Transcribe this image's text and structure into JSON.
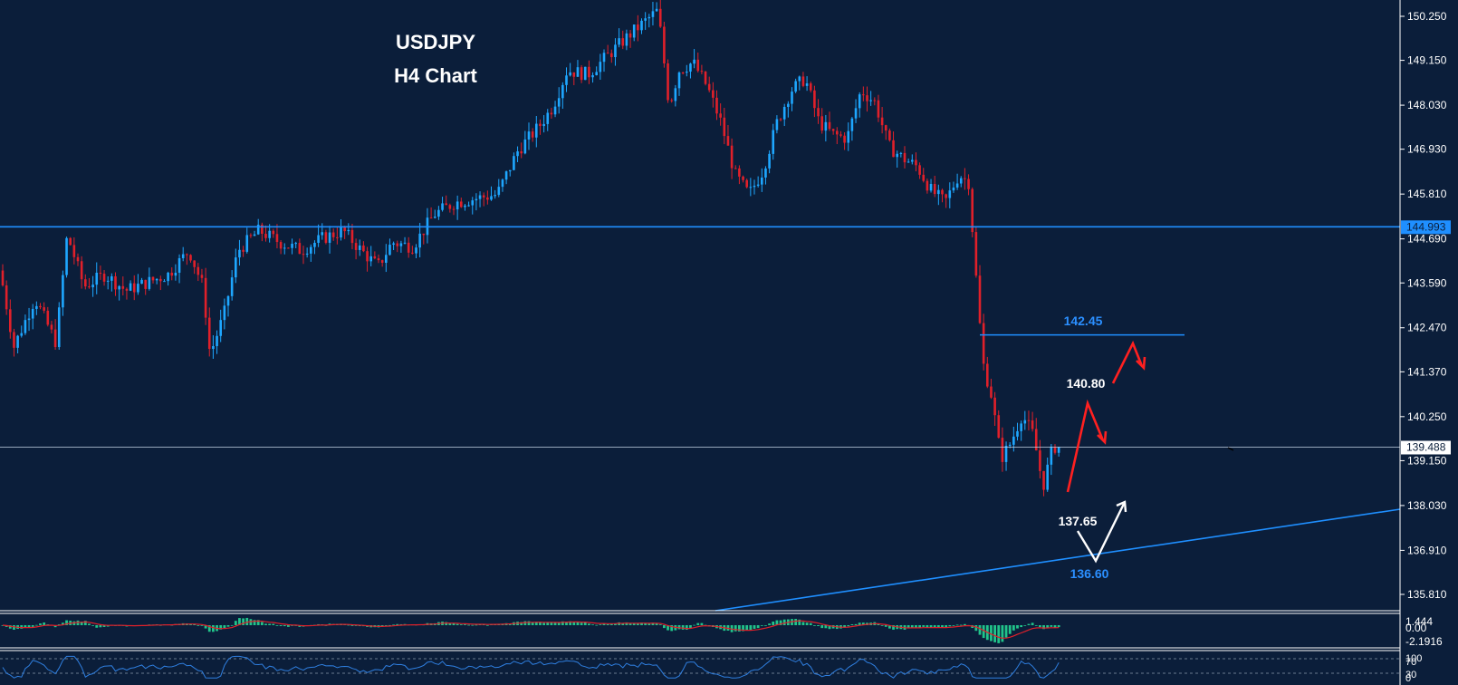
{
  "header": {
    "symbol": "USDJPY",
    "timeframe": "H4 Chart"
  },
  "colors": {
    "background": "#0b1e3a",
    "bull": "#1ea7ff",
    "bear": "#e0202a",
    "level_line": "#1f8fff",
    "current_price_line": "#c8d6e8",
    "projection_red": "#ff2020",
    "projection_white": "#ffffff",
    "macd_histogram": "#21c48a",
    "macd_signal": "#e0202a",
    "rsi_line": "#2f7fe0",
    "scale_text": "#ffffff"
  },
  "price_scale": {
    "labels": [
      "150.250",
      "149.150",
      "148.030",
      "146.930",
      "145.810",
      "144.690",
      "143.590",
      "142.470",
      "141.370",
      "140.250",
      "139.150",
      "138.030",
      "136.910",
      "135.810"
    ]
  },
  "price_tags": {
    "resistance": "144.993",
    "current": "139.488"
  },
  "annotations": {
    "level_142": "142.45",
    "level_140": "140.80",
    "level_137": "137.65",
    "level_136": "136.60"
  },
  "macd": {
    "labels": [
      "1.444",
      "0.00",
      "-2.1916"
    ]
  },
  "rsi": {
    "labels": [
      "100",
      "70",
      "30",
      "0"
    ]
  },
  "chart_data": {
    "type": "candlestick",
    "symbol": "USDJPY",
    "timeframe": "H4",
    "ylim": [
      135.3,
      150.5
    ],
    "horizontal_levels": [
      144.993,
      139.488,
      142.45
    ],
    "trendline": {
      "from": [
        0.493,
        135.25
      ],
      "to": [
        1.0,
        138.0
      ]
    },
    "close_path": [
      [
        0.0,
        143.9
      ],
      [
        0.01,
        142.0
      ],
      [
        0.025,
        143.2
      ],
      [
        0.04,
        142.1
      ],
      [
        0.048,
        144.8
      ],
      [
        0.06,
        143.5
      ],
      [
        0.075,
        143.8
      ],
      [
        0.09,
        143.4
      ],
      [
        0.105,
        143.6
      ],
      [
        0.12,
        143.8
      ],
      [
        0.135,
        144.4
      ],
      [
        0.145,
        143.5
      ],
      [
        0.15,
        141.8
      ],
      [
        0.16,
        142.8
      ],
      [
        0.17,
        144.4
      ],
      [
        0.185,
        144.9
      ],
      [
        0.2,
        144.6
      ],
      [
        0.215,
        144.4
      ],
      [
        0.23,
        144.7
      ],
      [
        0.245,
        144.9
      ],
      [
        0.258,
        144.4
      ],
      [
        0.27,
        144.0
      ],
      [
        0.28,
        144.6
      ],
      [
        0.295,
        144.5
      ],
      [
        0.31,
        145.3
      ],
      [
        0.325,
        145.6
      ],
      [
        0.34,
        145.7
      ],
      [
        0.355,
        145.8
      ],
      [
        0.37,
        146.9
      ],
      [
        0.385,
        147.5
      ],
      [
        0.395,
        148.0
      ],
      [
        0.405,
        148.9
      ],
      [
        0.42,
        148.8
      ],
      [
        0.435,
        149.3
      ],
      [
        0.45,
        149.8
      ],
      [
        0.46,
        150.1
      ],
      [
        0.47,
        150.4
      ],
      [
        0.478,
        148.0
      ],
      [
        0.485,
        148.9
      ],
      [
        0.495,
        149.1
      ],
      [
        0.505,
        148.5
      ],
      [
        0.515,
        147.6
      ],
      [
        0.525,
        146.3
      ],
      [
        0.535,
        145.8
      ],
      [
        0.545,
        146.4
      ],
      [
        0.555,
        147.6
      ],
      [
        0.565,
        148.4
      ],
      [
        0.575,
        148.7
      ],
      [
        0.585,
        147.6
      ],
      [
        0.595,
        147.3
      ],
      [
        0.605,
        147.2
      ],
      [
        0.615,
        148.4
      ],
      [
        0.625,
        148.1
      ],
      [
        0.635,
        147.0
      ],
      [
        0.645,
        146.7
      ],
      [
        0.655,
        146.5
      ],
      [
        0.665,
        145.9
      ],
      [
        0.675,
        145.6
      ],
      [
        0.685,
        146.3
      ],
      [
        0.692,
        146.1
      ],
      [
        0.697,
        143.8
      ],
      [
        0.702,
        141.6
      ],
      [
        0.708,
        140.8
      ],
      [
        0.715,
        139.2
      ],
      [
        0.722,
        139.6
      ],
      [
        0.73,
        140.3
      ],
      [
        0.738,
        139.8
      ],
      [
        0.745,
        138.5
      ],
      [
        0.752,
        139.5
      ],
      [
        0.757,
        139.49
      ]
    ],
    "projections": [
      {
        "color": "red",
        "points": [
          [
            140.6,
            139.3
          ],
          [
            140.8,
            138.2
          ],
          [
            141.1,
            140.8
          ],
          [
            141.3,
            142.45
          ],
          [
            141.4,
            141.4
          ]
        ]
      }
    ]
  }
}
